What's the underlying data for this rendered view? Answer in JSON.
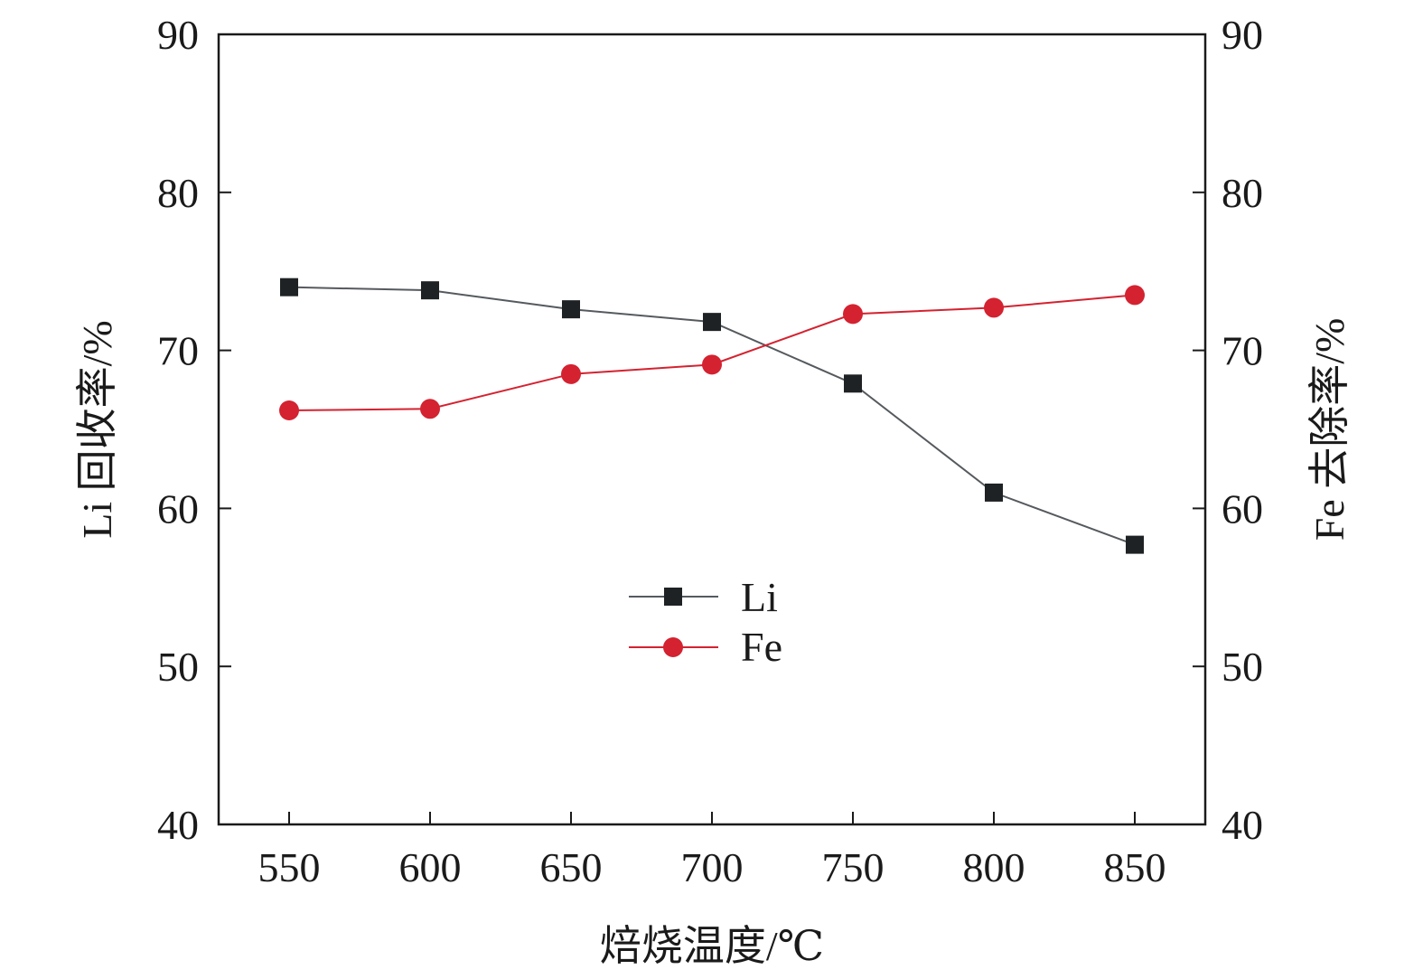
{
  "chart_data": {
    "type": "line",
    "x": [
      550,
      600,
      650,
      700,
      750,
      800,
      850
    ],
    "xlabel": "焙烧温度/℃",
    "ylabel_left": "Li 回收率/%",
    "ylabel_right": "Fe 去除率/%",
    "ylim": [
      40,
      90
    ],
    "yticks": [
      40,
      50,
      60,
      70,
      80,
      90
    ],
    "xlim": [
      525,
      875
    ],
    "grid": false,
    "legend_position": "center",
    "series": [
      {
        "name": "Li",
        "axis": "left",
        "marker": "square",
        "color": "#1e2224",
        "line_color": "#555a5e",
        "values": [
          74.0,
          73.8,
          72.6,
          71.8,
          67.9,
          61.0,
          57.7
        ]
      },
      {
        "name": "Fe",
        "axis": "right",
        "marker": "circle",
        "color": "#d42230",
        "line_color": "#d42230",
        "values": [
          66.2,
          66.3,
          68.5,
          69.1,
          72.3,
          72.7,
          73.5
        ]
      }
    ]
  }
}
